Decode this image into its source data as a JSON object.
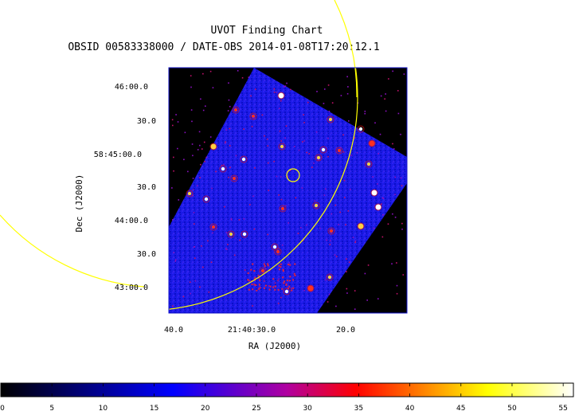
{
  "chart_data": {
    "type": "heatmap",
    "title": "UVOT Finding Chart",
    "subtitle": "OBSID 00583338000 / DATE-OBS 2014-01-08T17:20:12.1",
    "xlabel": "RA (J2000)",
    "ylabel": "Dec (J2000)",
    "x_ticks": [
      "40.0",
      "21:40:30.0",
      "20.0"
    ],
    "y_ticks": [
      "46:00.0",
      "30.0",
      "58:45:00.0",
      "30.0",
      "44:00.0",
      "30.0",
      "43:00.0"
    ],
    "colorbar": {
      "ticks": [
        "0",
        "5",
        "10",
        "15",
        "20",
        "25",
        "30",
        "35",
        "40",
        "45",
        "50",
        "55"
      ],
      "range": [
        0,
        56
      ],
      "colormap": [
        "#000000",
        "#0000ff",
        "#ff0000",
        "#ffff00",
        "#ffffff"
      ]
    },
    "overlays": {
      "circle_color": "#ffff00",
      "frame_color": "#1010c8",
      "background_color": "#000000"
    }
  }
}
